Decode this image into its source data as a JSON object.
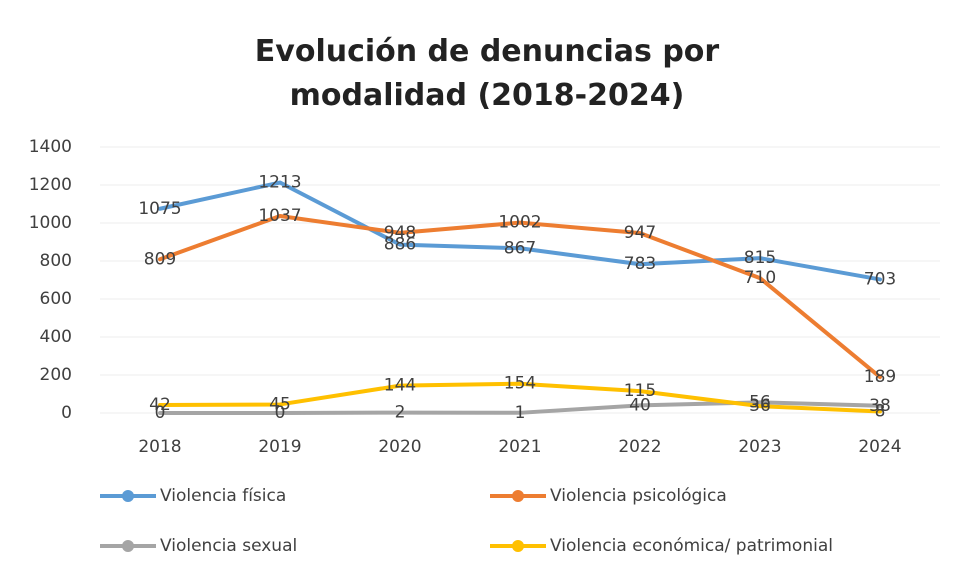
{
  "chart_data": {
    "type": "line",
    "title": "Evolución de denuncias por modalidad (2018-2024)",
    "categories": [
      "2018",
      "2019",
      "2020",
      "2021",
      "2022",
      "2023",
      "2024"
    ],
    "series": [
      {
        "name": "Violencia física",
        "color": "#5b9bd5",
        "values": [
          1075,
          1213,
          886,
          867,
          783,
          815,
          703
        ]
      },
      {
        "name": "Violencia psicológica",
        "color": "#ed7d31",
        "values": [
          809,
          1037,
          948,
          1002,
          947,
          710,
          189
        ]
      },
      {
        "name": "Violencia sexual",
        "color": "#a5a5a5",
        "values": [
          0,
          0,
          2,
          1,
          40,
          56,
          38
        ]
      },
      {
        "name": "Violencia económica/ patrimonial",
        "color": "#ffc000",
        "values": [
          42,
          45,
          144,
          154,
          115,
          36,
          8
        ]
      }
    ],
    "ylim": [
      0,
      1400
    ],
    "yticks": [
      0,
      200,
      400,
      600,
      800,
      1000,
      1200,
      1400
    ],
    "grid": true,
    "legend": "bottom"
  }
}
